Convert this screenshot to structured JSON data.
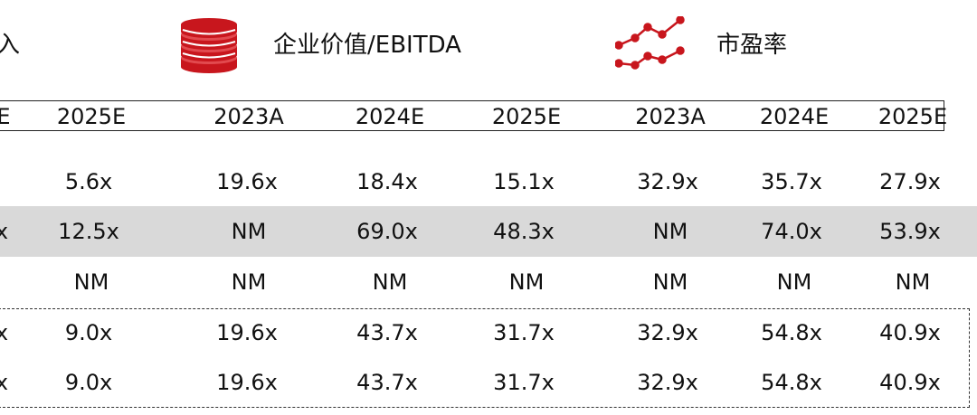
{
  "legend": {
    "left_fragment": "入",
    "ev_ebitda": {
      "label": "企业价值/EBITDA",
      "icon": "coin-stack-icon"
    },
    "pe": {
      "label": "市盈率",
      "icon": "line-trend-icon"
    }
  },
  "colors": {
    "accent": "#c8161d",
    "band": "#d9d9d9"
  },
  "header_years": [
    "E",
    "2025E",
    "2023A",
    "2024E",
    "2025E",
    "2023A",
    "2024E",
    "2025E"
  ],
  "rows": [
    {
      "edge": "",
      "values": [
        "5.6x",
        "19.6x",
        "18.4x",
        "15.1x",
        "32.9x",
        "35.7x",
        "27.9x"
      ]
    },
    {
      "edge": "x",
      "values": [
        "12.5x",
        "NM",
        "69.0x",
        "48.3x",
        "NM",
        "74.0x",
        "53.9x"
      ]
    },
    {
      "edge": "",
      "values": [
        "NM",
        "NM",
        "NM",
        "NM",
        "NM",
        "NM",
        "NM"
      ]
    },
    {
      "edge": "x",
      "values": [
        "9.0x",
        "19.6x",
        "43.7x",
        "31.7x",
        "32.9x",
        "54.8x",
        "40.9x"
      ]
    },
    {
      "edge": "x",
      "values": [
        "9.0x",
        "19.6x",
        "43.7x",
        "31.7x",
        "32.9x",
        "54.8x",
        "40.9x"
      ]
    }
  ]
}
